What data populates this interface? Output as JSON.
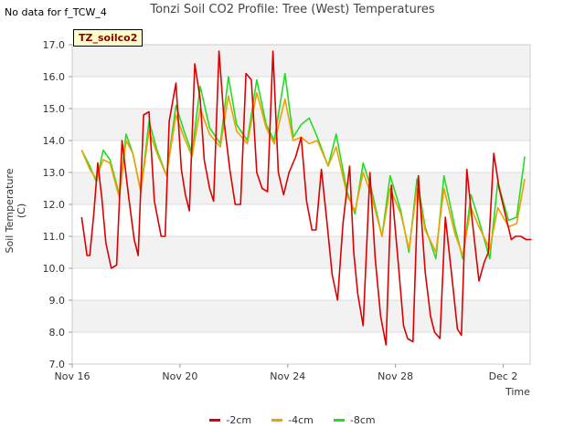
{
  "header": {
    "no_data_text": "No data for f_TCW_4",
    "site_tag": "TZ_soilco2"
  },
  "chart_data": {
    "type": "line",
    "title": "Tonzi Soil CO2 Profile: Tree (West) Temperatures",
    "xlabel": "Time",
    "ylabel": "Soil Temperature (C)",
    "ylim": [
      7.0,
      17.0
    ],
    "yticks": [
      "7.0",
      "8.0",
      "9.0",
      "10.0",
      "11.0",
      "12.0",
      "13.0",
      "14.0",
      "15.0",
      "16.0",
      "17.0"
    ],
    "xlim_days": [
      0,
      17
    ],
    "xticks": [
      {
        "label": "Nov 16",
        "day": 0
      },
      {
        "label": "Nov 20",
        "day": 4
      },
      {
        "label": "Nov 24",
        "day": 8
      },
      {
        "label": "Nov 28",
        "day": 12
      },
      {
        "label": "Dec 2",
        "day": 16
      }
    ],
    "grid": true,
    "legend_position": "bottom-center",
    "series": [
      {
        "name": "-2cm",
        "color": "#dd0000",
        "x_days": [
          0.35,
          0.55,
          0.65,
          0.8,
          0.95,
          1.1,
          1.25,
          1.45,
          1.65,
          1.85,
          2.1,
          2.3,
          2.45,
          2.65,
          2.85,
          3.05,
          3.3,
          3.45,
          3.6,
          3.85,
          4.05,
          4.2,
          4.35,
          4.55,
          4.75,
          4.9,
          5.1,
          5.25,
          5.45,
          5.65,
          5.85,
          6.05,
          6.25,
          6.45,
          6.65,
          6.85,
          7.05,
          7.25,
          7.45,
          7.65,
          7.85,
          8.05,
          8.3,
          8.5,
          8.7,
          8.9,
          9.05,
          9.25,
          9.45,
          9.65,
          9.85,
          10.05,
          10.3,
          10.45,
          10.6,
          10.8,
          11.05,
          11.25,
          11.45,
          11.65,
          11.85,
          12.1,
          12.3,
          12.45,
          12.65,
          12.85,
          13.1,
          13.3,
          13.45,
          13.65,
          13.85,
          14.1,
          14.3,
          14.45,
          14.65,
          14.85,
          15.1,
          15.3,
          15.45,
          15.65,
          15.85,
          16.1,
          16.3,
          16.45,
          16.65,
          16.85,
          17.05
        ],
        "values": [
          11.6,
          10.4,
          10.4,
          11.7,
          13.3,
          12.2,
          10.8,
          10.0,
          10.1,
          14.0,
          12.2,
          10.9,
          10.4,
          14.8,
          14.9,
          12.1,
          11.0,
          11.0,
          14.6,
          15.8,
          13.1,
          12.3,
          11.8,
          16.4,
          15.3,
          13.4,
          12.5,
          12.1,
          16.8,
          14.5,
          13.1,
          12.0,
          12.0,
          16.1,
          15.9,
          13.0,
          12.5,
          12.4,
          16.8,
          13.0,
          12.3,
          13.0,
          13.5,
          14.1,
          12.1,
          11.2,
          11.2,
          13.1,
          11.5,
          9.8,
          9.0,
          11.4,
          13.2,
          10.5,
          9.2,
          8.2,
          13.0,
          10.3,
          8.5,
          7.6,
          12.6,
          10.2,
          8.2,
          7.8,
          7.7,
          12.9,
          9.9,
          8.5,
          8.0,
          7.8,
          11.6,
          9.7,
          8.1,
          7.9,
          13.1,
          11.5,
          9.6,
          10.2,
          10.5,
          13.6,
          12.5,
          11.6,
          10.9,
          11.0,
          11.0,
          10.9,
          10.9
        ]
      },
      {
        "name": "-4cm",
        "color": "#f0a000",
        "x_days": [
          0.35,
          0.65,
          0.9,
          1.15,
          1.4,
          1.75,
          2.0,
          2.25,
          2.55,
          2.85,
          3.15,
          3.5,
          3.85,
          4.15,
          4.45,
          4.75,
          5.1,
          5.5,
          5.8,
          6.1,
          6.5,
          6.85,
          7.2,
          7.5,
          7.9,
          8.2,
          8.5,
          8.8,
          9.1,
          9.5,
          9.8,
          10.2,
          10.5,
          10.8,
          11.1,
          11.5,
          11.8,
          12.2,
          12.5,
          12.8,
          13.1,
          13.5,
          13.8,
          14.2,
          14.5,
          14.8,
          15.1,
          15.5,
          15.8,
          16.2,
          16.5,
          16.8
        ],
        "values": [
          13.7,
          13.1,
          12.8,
          13.4,
          13.3,
          12.2,
          14.0,
          13.6,
          12.4,
          14.3,
          13.6,
          12.9,
          14.8,
          14.1,
          13.5,
          15.0,
          14.2,
          13.8,
          15.4,
          14.3,
          13.9,
          15.5,
          14.4,
          13.9,
          15.3,
          14.0,
          14.1,
          13.9,
          14.0,
          13.2,
          13.8,
          12.3,
          11.8,
          13.0,
          12.3,
          11.0,
          12.5,
          11.7,
          10.6,
          12.5,
          11.2,
          10.5,
          12.5,
          11.1,
          10.4,
          11.9,
          11.3,
          10.6,
          11.9,
          11.3,
          11.4,
          12.8
        ]
      },
      {
        "name": "-8cm",
        "color": "#22dd22",
        "x_days": [
          0.35,
          0.65,
          0.9,
          1.15,
          1.4,
          1.75,
          2.0,
          2.25,
          2.55,
          2.85,
          3.15,
          3.5,
          3.85,
          4.15,
          4.45,
          4.75,
          5.1,
          5.5,
          5.8,
          6.1,
          6.5,
          6.85,
          7.2,
          7.5,
          7.9,
          8.2,
          8.5,
          8.8,
          9.1,
          9.5,
          9.8,
          10.2,
          10.5,
          10.8,
          11.1,
          11.5,
          11.8,
          12.2,
          12.5,
          12.8,
          13.1,
          13.5,
          13.8,
          14.2,
          14.5,
          14.8,
          15.1,
          15.5,
          15.8,
          16.2,
          16.5,
          16.8
        ],
        "values": [
          13.7,
          13.2,
          12.7,
          13.7,
          13.4,
          12.3,
          14.2,
          13.6,
          12.4,
          14.6,
          13.7,
          12.9,
          15.1,
          14.3,
          13.6,
          15.7,
          14.4,
          13.9,
          16.0,
          14.5,
          14.0,
          15.9,
          14.5,
          14.0,
          16.1,
          14.1,
          14.5,
          14.7,
          14.1,
          13.2,
          14.2,
          12.4,
          11.7,
          13.3,
          12.5,
          11.0,
          12.9,
          11.8,
          10.5,
          12.8,
          11.3,
          10.3,
          12.9,
          11.3,
          10.3,
          12.3,
          11.5,
          10.3,
          12.7,
          11.5,
          11.6,
          13.5
        ]
      }
    ]
  }
}
